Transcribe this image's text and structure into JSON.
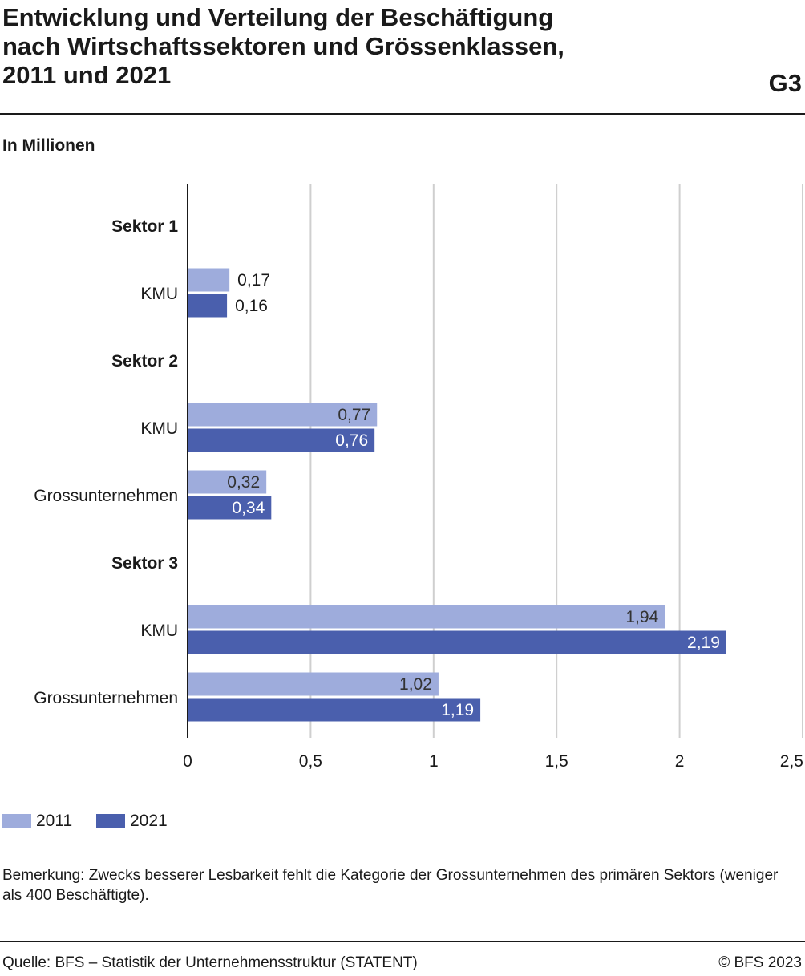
{
  "header": {
    "title_lines": [
      "Entwicklung und Verteilung der Beschäftigung",
      "nach Wirtschaftssektoren und Grössenklassen,",
      "2011 und 2021"
    ],
    "code": "G3",
    "unit": "In Millionen"
  },
  "chart_data": {
    "type": "bar",
    "orientation": "horizontal",
    "groups": [
      {
        "label": "Sektor 1",
        "categories": [
          {
            "label": "KMU",
            "values": [
              0.17,
              0.16
            ],
            "value_labels": [
              "0,17",
              "0,16"
            ]
          }
        ]
      },
      {
        "label": "Sektor 2",
        "categories": [
          {
            "label": "KMU",
            "values": [
              0.77,
              0.76
            ],
            "value_labels": [
              "0,77",
              "0,76"
            ]
          },
          {
            "label": "Grossunternehmen",
            "values": [
              0.32,
              0.34
            ],
            "value_labels": [
              "0,32",
              "0,34"
            ]
          }
        ]
      },
      {
        "label": "Sektor 3",
        "categories": [
          {
            "label": "KMU",
            "values": [
              1.94,
              2.19
            ],
            "value_labels": [
              "1,94",
              "2,19"
            ]
          },
          {
            "label": "Grossunternehmen",
            "values": [
              1.02,
              1.19
            ],
            "value_labels": [
              "1,02",
              "1,19"
            ]
          }
        ]
      }
    ],
    "series": [
      {
        "name": "2011",
        "color": "#9eacdc"
      },
      {
        "name": "2021",
        "color": "#4a5fad"
      }
    ],
    "xlim": [
      0,
      2.5
    ],
    "xticks": [
      0,
      0.5,
      1,
      1.5,
      2,
      2.5
    ],
    "xtick_labels": [
      "0",
      "0,5",
      "1",
      "1,5",
      "2",
      "2,5"
    ],
    "grid": true,
    "legend": "bottom-left"
  },
  "legend": {
    "items": [
      "2011",
      "2021"
    ]
  },
  "note": "Bemerkung: Zwecks besserer Lesbarkeit fehlt die Kategorie der Grossunternehmen des primären Sektors (weniger als 400 Beschäftigte).",
  "footer": {
    "source": "Quelle: BFS – Statistik der Unternehmensstruktur (STATENT)",
    "copyright": "© BFS 2023"
  }
}
